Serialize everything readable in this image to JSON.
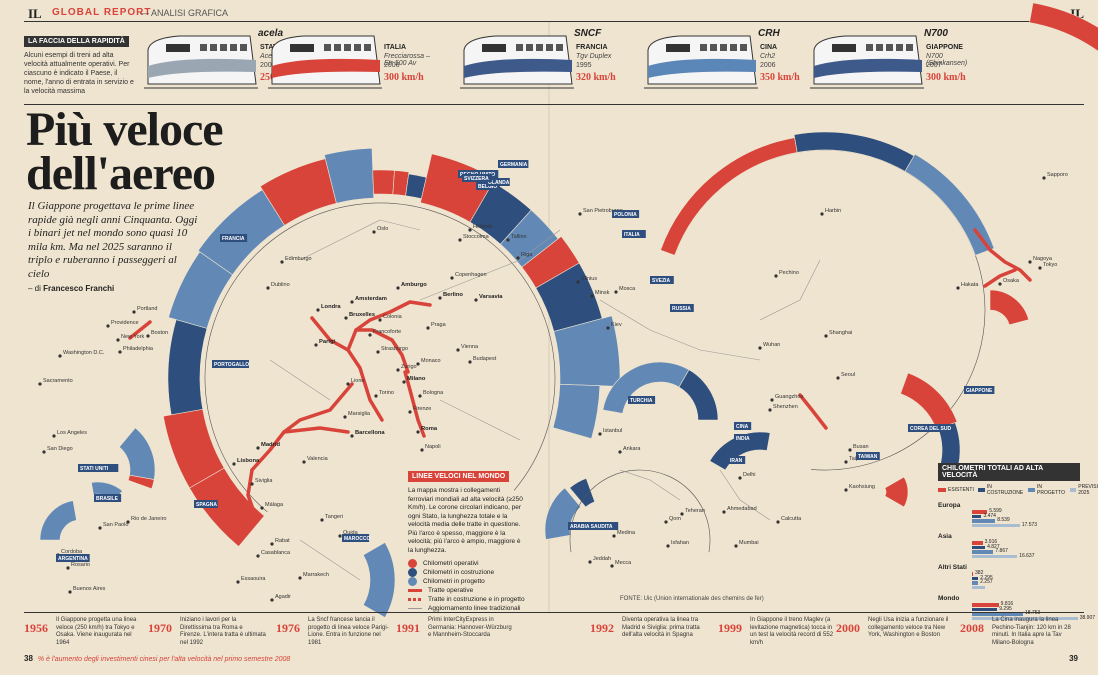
{
  "header": {
    "logo": "IL",
    "section": "GLOBAL REPORT",
    "subsection": "— ANALISI GRAFICA",
    "logo_right": "IL"
  },
  "faccia": {
    "tag": "LA FACCIA DELLA RAPIDITÀ",
    "text": "Alcuni esempi di treni ad alta velocità attualmente operativi. Per ciascuno è indicato il Paese, il nome, l'anno di entrata in servizio e la velocità massima"
  },
  "trains": [
    {
      "brand": "acela",
      "country": "STATI UNITI",
      "model": "Acela Express",
      "year": "2000",
      "speed": "250 km/h",
      "color": "#9aa7b3"
    },
    {
      "brand": "",
      "country": "ITALIA",
      "model": "Frecciarossa – Etr 500 Av",
      "year": "2006",
      "speed": "300 km/h",
      "color": "#d8433a"
    },
    {
      "brand": "SNCF",
      "country": "FRANCIA",
      "model": "Tgv Duplex",
      "year": "1995",
      "speed": "320 km/h",
      "color": "#3d5a8a"
    },
    {
      "brand": "CRH",
      "country": "CINA",
      "model": "Crh2",
      "year": "2006",
      "speed": "350 km/h",
      "color": "#5a86b8"
    },
    {
      "brand": "N700",
      "country": "GIAPPONE",
      "model": "N700 (Shinkansen)",
      "year": "2007",
      "speed": "300 km/h",
      "color": "#3d5a8a"
    }
  ],
  "title": {
    "line1": "Più veloce",
    "line2": "dell'aereo"
  },
  "intro": "Il Giappone progettava le prime linee rapide già negli anni Cinquanta. Oggi i binari jet nel mondo sono quasi 10 mila km. Ma nel 2025 saranno il triplo e ruberanno i passeggeri al cielo",
  "byline": {
    "prefix": "– di",
    "author": "Francesco Franchi"
  },
  "colors": {
    "operational": "#d8433a",
    "construction": "#2e4e7e",
    "project": "#6289b6",
    "bg": "#efe4cf"
  },
  "legend": {
    "title": "LINEE VELOCI NEL MONDO",
    "desc": "La mappa mostra i collegamenti ferroviari mondiali ad alta velocità (≥250 Km/h). Le corone circolari indicano, per ogni Stato, la lunghezza totale e la velocità media delle tratte in questione. Più l'arco è spesso, maggiore è la velocità; più l'arco è ampio, maggiore è la lunghezza.",
    "items": [
      "Chilometri operativi",
      "Chilometri in costruzione",
      "Chilometri in progetto",
      "Tratte operative",
      "Tratte in costruzione e in progetto",
      "Aggiornamento linee tradizionali"
    ]
  },
  "source": "FONTE: Uic (Union internationale des chemins de fer)",
  "chart_data": {
    "type": "bar",
    "title": "CHILOMETRI TOTALI AD ALTA VELOCITÀ",
    "series": [
      {
        "name": "ESISTENTI",
        "color": "#d8433a"
      },
      {
        "name": "IN COSTRUZIONE",
        "color": "#2e4e7e"
      },
      {
        "name": "IN PROGETTO",
        "color": "#6289b6"
      },
      {
        "name": "PREVISIONE 2025",
        "color": "#a8bcd2"
      }
    ],
    "categories": [
      "Europa",
      "Asia",
      "Altri Stati",
      "Mondo"
    ],
    "values": [
      [
        5599,
        3474,
        8539,
        17573
      ],
      [
        3916,
        4827,
        7867,
        16637
      ],
      [
        382,
        2295,
        2257,
        4934
      ],
      [
        9816,
        9295,
        18753,
        38907
      ]
    ],
    "labels": [
      [
        "5.599",
        "3.474",
        "8.539",
        "17.573"
      ],
      [
        "3.916",
        "4.827",
        "7.867",
        "16.637"
      ],
      [
        "382",
        "2.295",
        "2.257",
        ""
      ],
      [
        "9.816",
        "9.295",
        "18.753",
        "38.907"
      ]
    ],
    "xlim": [
      0,
      39000
    ]
  },
  "countries": [
    "STATI UNITI",
    "ARGENTINA",
    "BRASILE",
    "MAROCCO",
    "SPAGNA",
    "PORTOGALLO",
    "FRANCIA",
    "REGNO UNITO",
    "BELGIO",
    "OLANDA",
    "SVIZZERA",
    "GERMANIA",
    "POLONIA",
    "ITALIA",
    "SVEZIA",
    "RUSSIA",
    "TURCHIA",
    "ARABIA SAUDITA",
    "IRAN",
    "INDIA",
    "CINA",
    "TAIWAN",
    "COREA DEL SUD",
    "GIAPPONE"
  ],
  "cities_eu": [
    "Londra",
    "Parigi",
    "Bruxelles",
    "Amsterdam",
    "Berlino",
    "Amburgo",
    "Varsavia",
    "Madrid",
    "Barcellona",
    "Lisbona",
    "Milano",
    "Roma",
    "Lione",
    "Torino",
    "Bologna",
    "Firenze",
    "Napoli",
    "Stoccolma",
    "Colonia",
    "Francoforte",
    "Praga",
    "Vienna",
    "Dublino",
    "Edimburgo",
    "Siviglia",
    "Valencia",
    "Málaga",
    "Marsiglia",
    "Strasburgo",
    "Monaco",
    "Zurigo",
    "Budapest",
    "Copenhagen",
    "Oslo",
    "Helsinki",
    "Tallinn",
    "Riga",
    "Vilnius",
    "Minsk",
    "Kiev",
    "Mosca",
    "San Pietroburgo",
    "Rabat",
    "Casablanca",
    "Marrakech",
    "Agadir",
    "Tangeri",
    "Oujda",
    "Essaouira"
  ],
  "cities_world": [
    "Boston",
    "New York",
    "Washington D.C.",
    "Philadelphia",
    "Providence",
    "Portland",
    "Los Angeles",
    "San Diego",
    "Sacramento",
    "San Paolo",
    "Rio de Janeiro",
    "Buenos Aires",
    "Rosario",
    "Cordoba",
    "Istanbul",
    "Ankara",
    "Teheran",
    "Qom",
    "Isfahan",
    "Mecca",
    "Medina",
    "Jeddah",
    "Mumbai",
    "Ahmedabad",
    "Calcutta",
    "Delhi",
    "Pechino",
    "Shanghai",
    "Harbin",
    "Wuhan",
    "Guangzhou",
    "Shenzhen",
    "Seoul",
    "Busan",
    "Taipei",
    "Kaohsiung",
    "Tokyo",
    "Osaka",
    "Sapporo",
    "Nagoya",
    "Hakata"
  ],
  "timeline": [
    {
      "year": "1956",
      "text": "Il Giappone progetta una linea veloce (250 km/h) tra Tokyo e Osaka. Viene inaugurata nel 1964"
    },
    {
      "year": "1970",
      "text": "Iniziano i lavori per la Direttissima tra Roma e Firenze. L'intera tratta è ultimata nel 1992"
    },
    {
      "year": "1976",
      "text": "La Sncf francese lancia il progetto di linea veloce Parigi-Lione. Entra in funzione nel 1981"
    },
    {
      "year": "1991",
      "text": "Primi InterCityExpress in Germania: Hannover-Würzburg e Mannheim-Stoccarda"
    },
    {
      "year": "1992",
      "text": "Diventa operativa la linea tra Madrid e Siviglia: prima tratta dell'alta velocità in Spagna"
    },
    {
      "year": "1999",
      "text": "In Giappone il treno Maglev (a levitazione magnetica) tocca in un test la velocità record di 552 km/h"
    },
    {
      "year": "2000",
      "text": "Negli Usa inizia a funzionare il collegamento veloce tra New York, Washington e Boston"
    },
    {
      "year": "2008",
      "text": "La Cina inaugura la linea Pechino-Tianjin: 120 km in 28 minuti. In Italia apre la Tav Milano-Bologna"
    }
  ],
  "footer": {
    "page_left": "38",
    "tagline": "% è l'aumento degli investimenti cinesi per l'alta velocità nel primo semestre 2008",
    "page_right": "39"
  }
}
